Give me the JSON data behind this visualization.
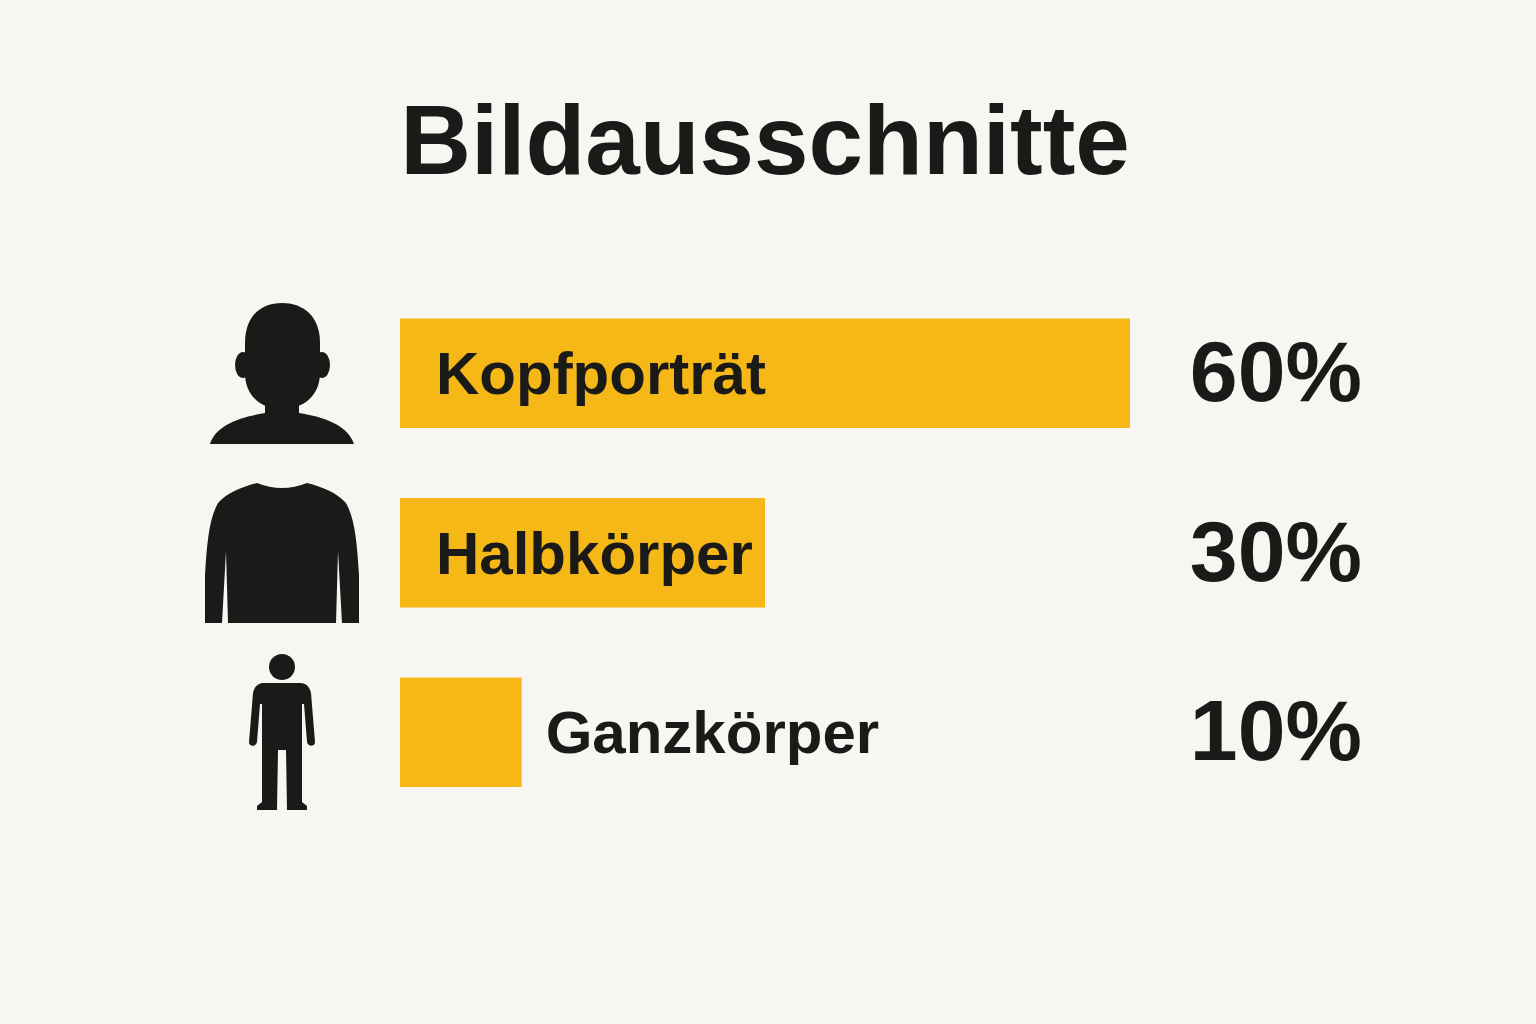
{
  "chart_data": {
    "type": "bar",
    "title": "Bildausschnitte",
    "categories": [
      "Kopfporträt",
      "Halbkörper",
      "Ganzkörper"
    ],
    "values": [
      60,
      30,
      10
    ],
    "value_labels": [
      "60%",
      "30%",
      "10%"
    ],
    "color": "#f6b817",
    "orientation": "horizontal"
  }
}
